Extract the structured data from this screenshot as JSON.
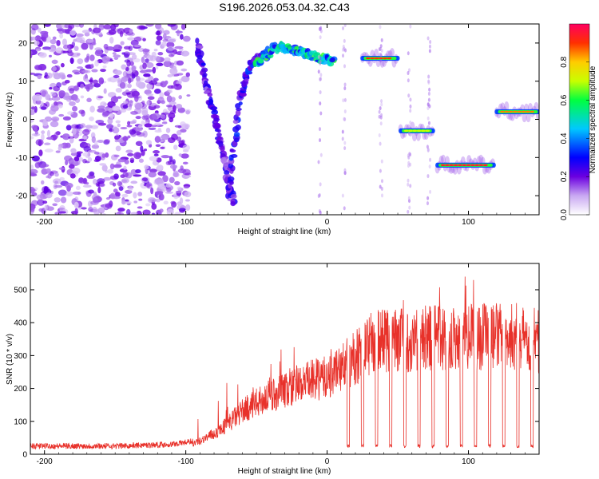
{
  "title": "S196.2026.053.04.32.C43",
  "chart_data": [
    {
      "type": "heatmap",
      "title": "S196.2026.053.04.32.C43",
      "xlabel": "Height of straight line (km)",
      "ylabel": "Frequency (Hz)",
      "xlim": [
        -210,
        150
      ],
      "ylim": [
        -25,
        25
      ],
      "xticks": [
        -200,
        -100,
        0,
        100
      ],
      "yticks": [
        -20,
        -10,
        0,
        10,
        20
      ],
      "colorbar": {
        "label": "Normalized spectral amplitude",
        "range": [
          0.0,
          1.0
        ],
        "ticks": [
          0.0,
          0.2,
          0.4,
          0.6,
          0.8
        ],
        "tick_labels": [
          "0.0",
          "0.2",
          "0.4",
          "0.6",
          "0.8"
        ]
      },
      "features": [
        {
          "name": "noise-region",
          "x_range": [
            -210,
            -98
          ],
          "y_range": [
            -25,
            25
          ],
          "amplitude": 0.1
        },
        {
          "name": "descending-track",
          "x": [
            -92,
            -85,
            -78,
            -72,
            -66
          ],
          "y": [
            20,
            8,
            -2,
            -12,
            -22
          ],
          "amplitude": 0.25
        },
        {
          "name": "rising-track",
          "x": [
            -70,
            -62,
            -55,
            -45
          ],
          "y": [
            -20,
            5,
            14,
            17
          ],
          "amplitude": 0.3
        },
        {
          "name": "arc-track",
          "x": [
            -50,
            -35,
            -20,
            -5,
            5
          ],
          "y": [
            15,
            19,
            18,
            16,
            15
          ],
          "amplitude": 0.55
        },
        {
          "name": "tone-1",
          "x_range": [
            25,
            50
          ],
          "y": 16,
          "amplitude": 0.9
        },
        {
          "name": "tone-2",
          "x_range": [
            52,
            75
          ],
          "y": -3,
          "amplitude": 0.7
        },
        {
          "name": "tone-3",
          "x_range": [
            78,
            118
          ],
          "y": -12,
          "amplitude": 0.95
        },
        {
          "name": "tone-4",
          "x_range": [
            120,
            150
          ],
          "y": 2,
          "amplitude": 0.85
        }
      ]
    },
    {
      "type": "line",
      "xlabel": "Height of straight line (km)",
      "ylabel": "SNR (10 * v/v)",
      "xlim": [
        -210,
        150
      ],
      "ylim": [
        0,
        580
      ],
      "xticks": [
        -200,
        -100,
        0,
        100
      ],
      "yticks": [
        0,
        100,
        200,
        300,
        400,
        500
      ],
      "color": "#e8312a",
      "series": [
        {
          "name": "SNR envelope",
          "x": [
            -210,
            -150,
            -110,
            -95,
            -80,
            -70,
            -60,
            -50,
            -40,
            -30,
            -20,
            -10,
            0,
            10,
            20,
            30,
            40,
            60,
            80,
            100,
            120,
            140,
            150
          ],
          "y": [
            25,
            25,
            30,
            40,
            80,
            120,
            170,
            200,
            230,
            250,
            270,
            290,
            300,
            340,
            380,
            430,
            450,
            450,
            460,
            460,
            460,
            460,
            440
          ]
        },
        {
          "name": "periodic dropouts",
          "x": [
            15,
            25,
            35,
            45,
            55,
            65,
            75,
            85,
            95,
            105,
            115,
            125,
            135,
            145
          ],
          "y": [
            20,
            20,
            20,
            20,
            20,
            20,
            20,
            20,
            20,
            20,
            20,
            20,
            20,
            20
          ]
        }
      ]
    }
  ]
}
